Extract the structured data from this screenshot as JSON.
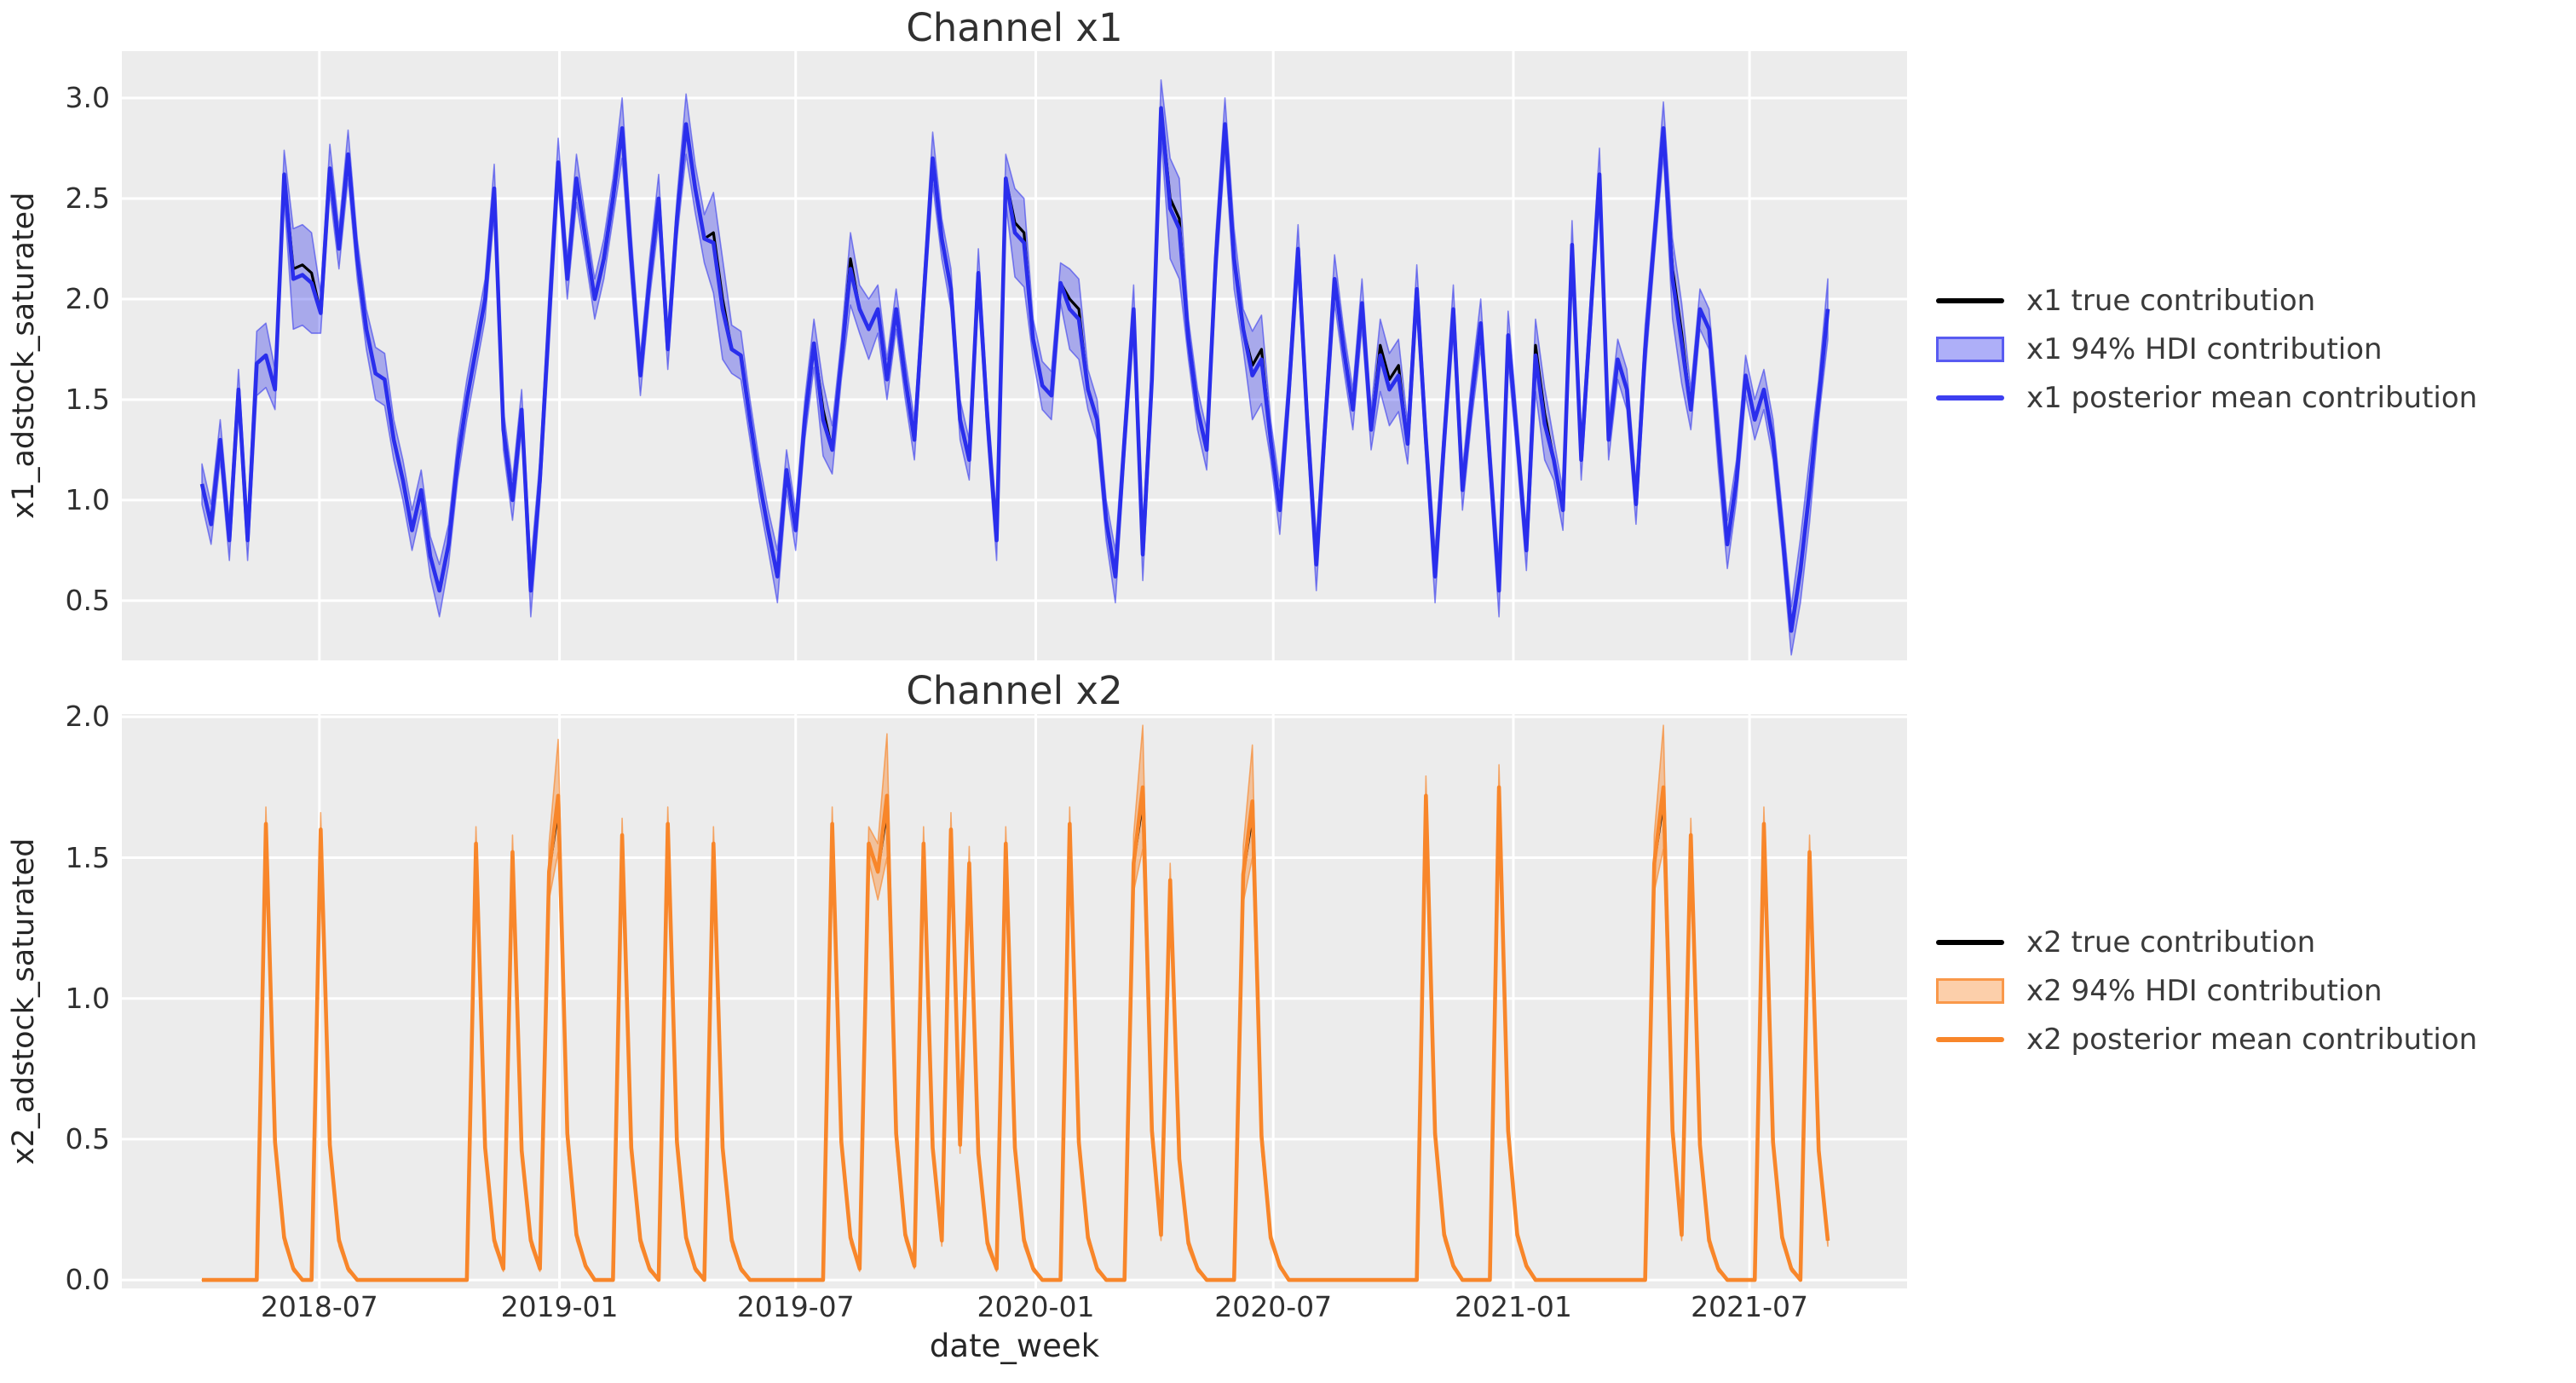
{
  "figure": {
    "background": "#ffffff",
    "axes_background": "#ececec",
    "grid_color": "#ffffff",
    "text_color": "#262626"
  },
  "x_axis": {
    "label": "date_week",
    "start_date": "2018-04-02",
    "interval_days": 7,
    "n_points": 179,
    "span_days": 1246,
    "tick_labels": [
      "2018-07",
      "2019-01",
      "2019-07",
      "2020-01",
      "2020-07",
      "2021-01",
      "2021-07"
    ],
    "tick_day_offsets": [
      90,
      274,
      455,
      639,
      821,
      1005,
      1186
    ]
  },
  "chart_data": [
    {
      "type": "line",
      "title": "Channel x1",
      "xlabel": "date_week",
      "ylabel": "x1_adstock_saturated",
      "ylim": [
        0.203,
        3.233
      ],
      "ytick_values": [
        0.5,
        1.0,
        1.5,
        2.0,
        2.5,
        3.0
      ],
      "ytick_labels": [
        "0.5",
        "1.0",
        "1.5",
        "2.0",
        "2.5",
        "3.0"
      ],
      "grid": true,
      "legend_position": "right",
      "colors": {
        "mean_line": "#2a2eec",
        "true_line": "#000000",
        "band_fill": "rgba(42,46,236,0.35)",
        "band_edge": "rgba(42,46,236,0.55)"
      },
      "legend": [
        {
          "label": "x1 true contribution",
          "swatch": "line",
          "color": "#000000"
        },
        {
          "label": "x1 94% HDI contribution",
          "swatch": "patch",
          "fill": "rgba(42,46,236,0.38)",
          "border": "rgba(42,46,236,0.65)"
        },
        {
          "label": "x1 posterior mean contribution",
          "swatch": "line",
          "color": "#3d3ff0"
        }
      ],
      "true_values_note": "true contribution coincides with posterior mean within line width; black visible only at peak tips and wide-band plateaus",
      "posterior_mean": [
        1.08,
        0.88,
        1.3,
        0.8,
        1.55,
        0.8,
        1.68,
        1.72,
        1.55,
        2.62,
        2.1,
        2.12,
        2.08,
        1.93,
        2.65,
        2.25,
        2.72,
        2.2,
        1.85,
        1.63,
        1.6,
        1.3,
        1.1,
        0.85,
        1.05,
        0.72,
        0.55,
        0.78,
        1.2,
        1.5,
        1.75,
        2.0,
        2.55,
        1.35,
        1.0,
        1.45,
        0.55,
        1.1,
        1.9,
        2.68,
        2.1,
        2.6,
        2.3,
        2.0,
        2.2,
        2.5,
        2.85,
        2.2,
        1.62,
        2.1,
        2.5,
        1.75,
        2.4,
        2.87,
        2.55,
        2.3,
        2.28,
        1.95,
        1.75,
        1.72,
        1.4,
        1.1,
        0.85,
        0.62,
        1.15,
        0.85,
        1.4,
        1.78,
        1.4,
        1.25,
        1.7,
        2.15,
        1.95,
        1.85,
        1.95,
        1.6,
        1.95,
        1.6,
        1.3,
        2.0,
        2.7,
        2.3,
        2.05,
        1.4,
        1.2,
        2.13,
        1.4,
        0.8,
        2.6,
        2.33,
        2.28,
        1.8,
        1.57,
        1.52,
        2.08,
        1.95,
        1.9,
        1.55,
        1.4,
        0.9,
        0.62,
        1.3,
        1.95,
        0.73,
        1.6,
        2.95,
        2.45,
        2.35,
        1.8,
        1.45,
        1.25,
        2.2,
        2.87,
        2.2,
        1.85,
        1.62,
        1.7,
        1.3,
        0.95,
        1.55,
        2.25,
        1.4,
        0.68,
        1.4,
        2.1,
        1.75,
        1.45,
        1.98,
        1.35,
        1.72,
        1.55,
        1.62,
        1.28,
        2.05,
        1.3,
        0.62,
        1.3,
        1.95,
        1.05,
        1.5,
        1.88,
        1.2,
        0.55,
        1.82,
        1.3,
        0.75,
        1.72,
        1.38,
        1.2,
        0.95,
        2.27,
        1.2,
        1.9,
        2.62,
        1.3,
        1.7,
        1.55,
        0.98,
        1.75,
        2.3,
        2.85,
        2.1,
        1.78,
        1.45,
        1.95,
        1.85,
        1.3,
        0.78,
        1.1,
        1.62,
        1.4,
        1.55,
        1.3,
        0.85,
        0.35,
        0.65,
        1.05,
        1.5,
        1.95
      ],
      "hdi_halfwidth": [
        0.1,
        0.1,
        0.1,
        0.1,
        0.1,
        0.1,
        0.16,
        0.16,
        0.1,
        0.12,
        0.25,
        0.25,
        0.25,
        0.1,
        0.12,
        0.1,
        0.12,
        0.1,
        0.1,
        0.13,
        0.13,
        0.1,
        0.1,
        0.1,
        0.1,
        0.1,
        0.13,
        0.1,
        0.1,
        0.1,
        0.1,
        0.1,
        0.12,
        0.1,
        0.1,
        0.1,
        0.13,
        0.1,
        0.14,
        0.12,
        0.1,
        0.12,
        0.1,
        0.1,
        0.1,
        0.1,
        0.15,
        0.12,
        0.1,
        0.1,
        0.12,
        0.1,
        0.1,
        0.15,
        0.12,
        0.12,
        0.25,
        0.25,
        0.12,
        0.12,
        0.1,
        0.1,
        0.1,
        0.13,
        0.1,
        0.1,
        0.1,
        0.12,
        0.18,
        0.12,
        0.1,
        0.18,
        0.12,
        0.15,
        0.12,
        0.1,
        0.1,
        0.1,
        0.1,
        0.1,
        0.13,
        0.1,
        0.1,
        0.1,
        0.1,
        0.12,
        0.1,
        0.1,
        0.12,
        0.22,
        0.22,
        0.1,
        0.12,
        0.12,
        0.1,
        0.2,
        0.2,
        0.1,
        0.1,
        0.1,
        0.13,
        0.1,
        0.12,
        0.13,
        0.1,
        0.14,
        0.25,
        0.25,
        0.1,
        0.1,
        0.1,
        0.12,
        0.13,
        0.15,
        0.1,
        0.22,
        0.22,
        0.1,
        0.12,
        0.1,
        0.12,
        0.1,
        0.13,
        0.1,
        0.12,
        0.1,
        0.1,
        0.12,
        0.1,
        0.18,
        0.18,
        0.18,
        0.1,
        0.12,
        0.1,
        0.13,
        0.1,
        0.12,
        0.1,
        0.1,
        0.12,
        0.1,
        0.13,
        0.12,
        0.1,
        0.1,
        0.18,
        0.18,
        0.1,
        0.1,
        0.12,
        0.1,
        0.1,
        0.13,
        0.1,
        0.1,
        0.1,
        0.1,
        0.12,
        0.1,
        0.13,
        0.2,
        0.2,
        0.1,
        0.1,
        0.1,
        0.14,
        0.12,
        0.1,
        0.1,
        0.1,
        0.1,
        0.1,
        0.1,
        0.12,
        0.16,
        0.16,
        0.1,
        0.15
      ]
    },
    {
      "type": "line",
      "title": "Channel x2",
      "xlabel": "date_week",
      "ylabel": "x2_adstock_saturated",
      "ylim": [
        -0.03,
        2.01
      ],
      "ytick_values": [
        0.0,
        0.5,
        1.0,
        1.5,
        2.0
      ],
      "ytick_labels": [
        "0.0",
        "0.5",
        "1.0",
        "1.5",
        "2.0"
      ],
      "grid": true,
      "legend_position": "right",
      "colors": {
        "mean_line": "#f8862a",
        "true_line": "#000000",
        "band_fill": "rgba(248,134,42,0.42)",
        "band_edge": "rgba(248,134,42,0.65)"
      },
      "legend": [
        {
          "label": "x2 true contribution",
          "swatch": "line",
          "color": "#000000"
        },
        {
          "label": "x2 94% HDI contribution",
          "swatch": "patch",
          "fill": "rgba(248,134,42,0.40)",
          "border": "rgba(248,134,42,0.75)"
        },
        {
          "label": "x2 posterior mean contribution",
          "swatch": "line",
          "color": "#f8862a"
        }
      ],
      "true_values_note": "true contribution coincides with posterior mean except just below the tallest banded spike peaks",
      "posterior_mean": [
        0,
        0,
        0,
        0,
        0,
        0,
        0,
        1.62,
        0.49,
        0.15,
        0.04,
        0,
        0,
        1.6,
        0.48,
        0.14,
        0.04,
        0,
        0,
        0,
        0,
        0,
        0,
        0,
        0,
        0,
        0,
        0,
        0,
        0,
        1.55,
        0.47,
        0.14,
        0.04,
        1.52,
        0.46,
        0.14,
        0.04,
        1.45,
        1.72,
        0.52,
        0.16,
        0.05,
        0,
        0,
        0,
        1.58,
        0.47,
        0.14,
        0.04,
        0,
        1.62,
        0.49,
        0.15,
        0.04,
        0,
        1.55,
        0.47,
        0.14,
        0.04,
        0,
        0,
        0,
        0,
        0,
        0,
        0,
        0,
        0,
        1.62,
        0.49,
        0.15,
        0.04,
        1.55,
        1.45,
        1.72,
        0.52,
        0.16,
        0.05,
        1.55,
        0.47,
        0.14,
        1.6,
        0.48,
        1.48,
        0.45,
        0.13,
        0.04,
        1.55,
        0.47,
        0.14,
        0.04,
        0,
        0,
        0,
        1.62,
        0.49,
        0.15,
        0.04,
        0,
        0,
        0,
        1.48,
        1.75,
        0.53,
        0.16,
        1.42,
        0.43,
        0.13,
        0.04,
        0,
        0,
        0,
        0,
        1.44,
        1.7,
        0.51,
        0.15,
        0.05,
        0,
        0,
        0,
        0,
        0,
        0,
        0,
        0,
        0,
        0,
        0,
        0,
        0,
        0,
        0,
        1.72,
        0.52,
        0.16,
        0.05,
        0,
        0,
        0,
        0,
        1.75,
        0.53,
        0.16,
        0.05,
        0,
        0,
        0,
        0,
        0,
        0,
        0,
        0,
        0,
        0,
        0,
        0,
        0,
        1.48,
        1.75,
        0.53,
        0.16,
        1.58,
        0.48,
        0.14,
        0.04,
        0,
        0,
        0,
        0,
        1.62,
        0.49,
        0.15,
        0.04,
        0,
        1.52,
        0.46,
        0.14
      ],
      "hdi_halfwidth": [
        0,
        0,
        0,
        0,
        0,
        0,
        0,
        0.06,
        0.03,
        0.02,
        0.01,
        0,
        0,
        0.06,
        0.03,
        0.02,
        0.01,
        0,
        0,
        0,
        0,
        0,
        0,
        0,
        0,
        0,
        0,
        0,
        0,
        0,
        0.06,
        0.03,
        0.02,
        0.01,
        0.06,
        0.03,
        0.02,
        0.01,
        0.1,
        0.2,
        0.05,
        0.02,
        0.01,
        0,
        0,
        0,
        0.06,
        0.03,
        0.02,
        0.01,
        0,
        0.06,
        0.03,
        0.02,
        0.01,
        0,
        0.06,
        0.03,
        0.02,
        0.01,
        0,
        0,
        0,
        0,
        0,
        0,
        0,
        0,
        0,
        0.06,
        0.03,
        0.02,
        0.01,
        0.06,
        0.1,
        0.22,
        0.05,
        0.02,
        0.01,
        0.06,
        0.03,
        0.02,
        0.06,
        0.03,
        0.06,
        0.03,
        0.02,
        0.01,
        0.06,
        0.03,
        0.02,
        0.01,
        0,
        0,
        0,
        0.06,
        0.03,
        0.02,
        0.01,
        0,
        0,
        0,
        0.1,
        0.22,
        0.05,
        0.02,
        0.06,
        0.03,
        0.02,
        0.01,
        0,
        0,
        0,
        0,
        0.1,
        0.2,
        0.05,
        0.02,
        0.01,
        0,
        0,
        0,
        0,
        0,
        0,
        0,
        0,
        0,
        0,
        0,
        0,
        0,
        0,
        0,
        0.07,
        0.03,
        0.02,
        0.01,
        0,
        0,
        0,
        0,
        0.08,
        0.03,
        0.02,
        0.01,
        0,
        0,
        0,
        0,
        0,
        0,
        0,
        0,
        0,
        0,
        0,
        0,
        0,
        0.1,
        0.22,
        0.05,
        0.02,
        0.06,
        0.03,
        0.02,
        0.01,
        0,
        0,
        0,
        0,
        0.06,
        0.03,
        0.02,
        0.01,
        0,
        0.06,
        0.03,
        0.02
      ]
    }
  ]
}
